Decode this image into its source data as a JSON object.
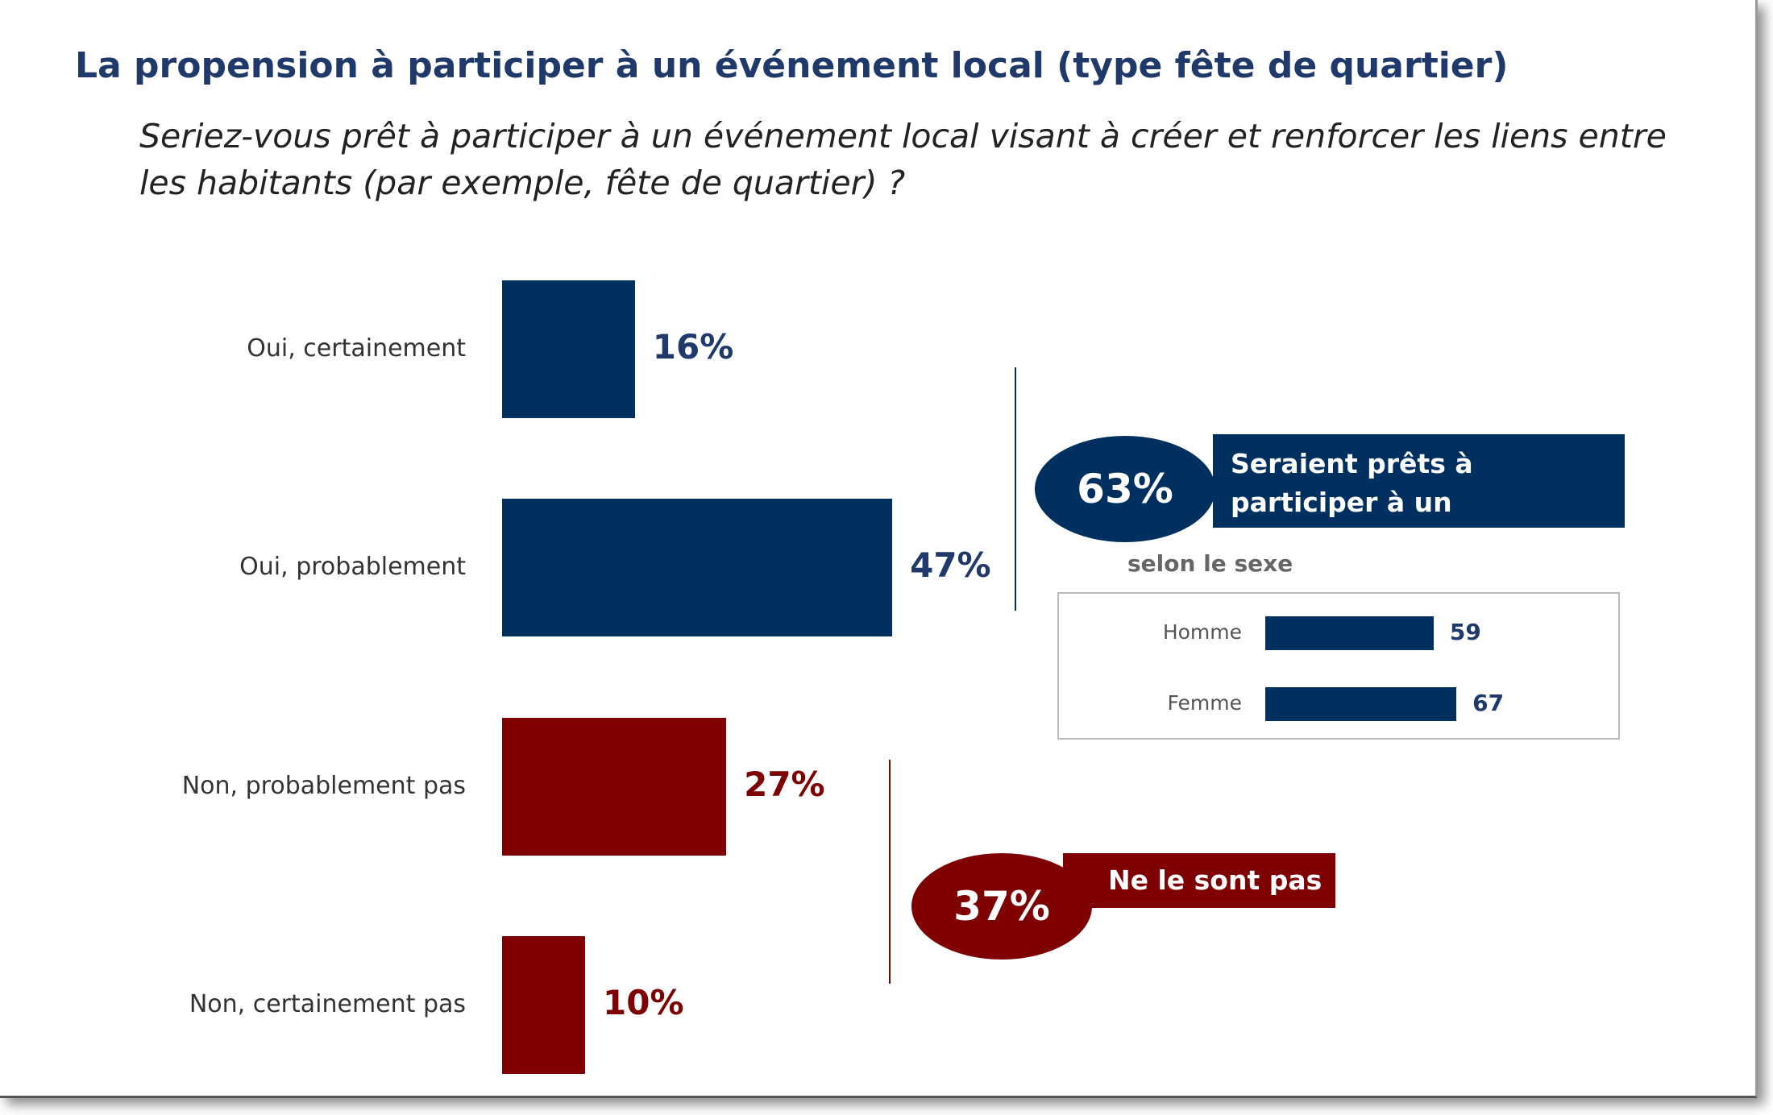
{
  "chart_data": {
    "type": "bar",
    "orientation": "horizontal",
    "title": "La propension à participer à un événement local (type fête de quartier)",
    "subtitle": "Seriez-vous prêt à participer à un événement local visant à créer et renforcer les liens entre les habitants (par exemple, fête de quartier) ?",
    "categories": [
      "Oui, certainement",
      "Oui, probablement",
      "Non, probablement pas",
      "Non, certainement pas"
    ],
    "values": [
      16,
      47,
      27,
      10
    ],
    "value_labels": [
      "16%",
      "47%",
      "27%",
      "10%"
    ],
    "colors": [
      "#00305f",
      "#00305f",
      "#7f0000",
      "#7f0000"
    ],
    "summary_yes": {
      "value_label": "63%",
      "text": "Seraient prêts à participer à un évènement local",
      "color": "#00305f"
    },
    "summary_no": {
      "value_label": "37%",
      "text": "Ne le sont pas",
      "color": "#7f0000"
    },
    "breakdown": {
      "title": "selon le sexe",
      "categories": [
        "Homme",
        "Femme"
      ],
      "values": [
        59,
        67
      ],
      "value_labels": [
        "59",
        "67"
      ],
      "color": "#00305f"
    }
  }
}
